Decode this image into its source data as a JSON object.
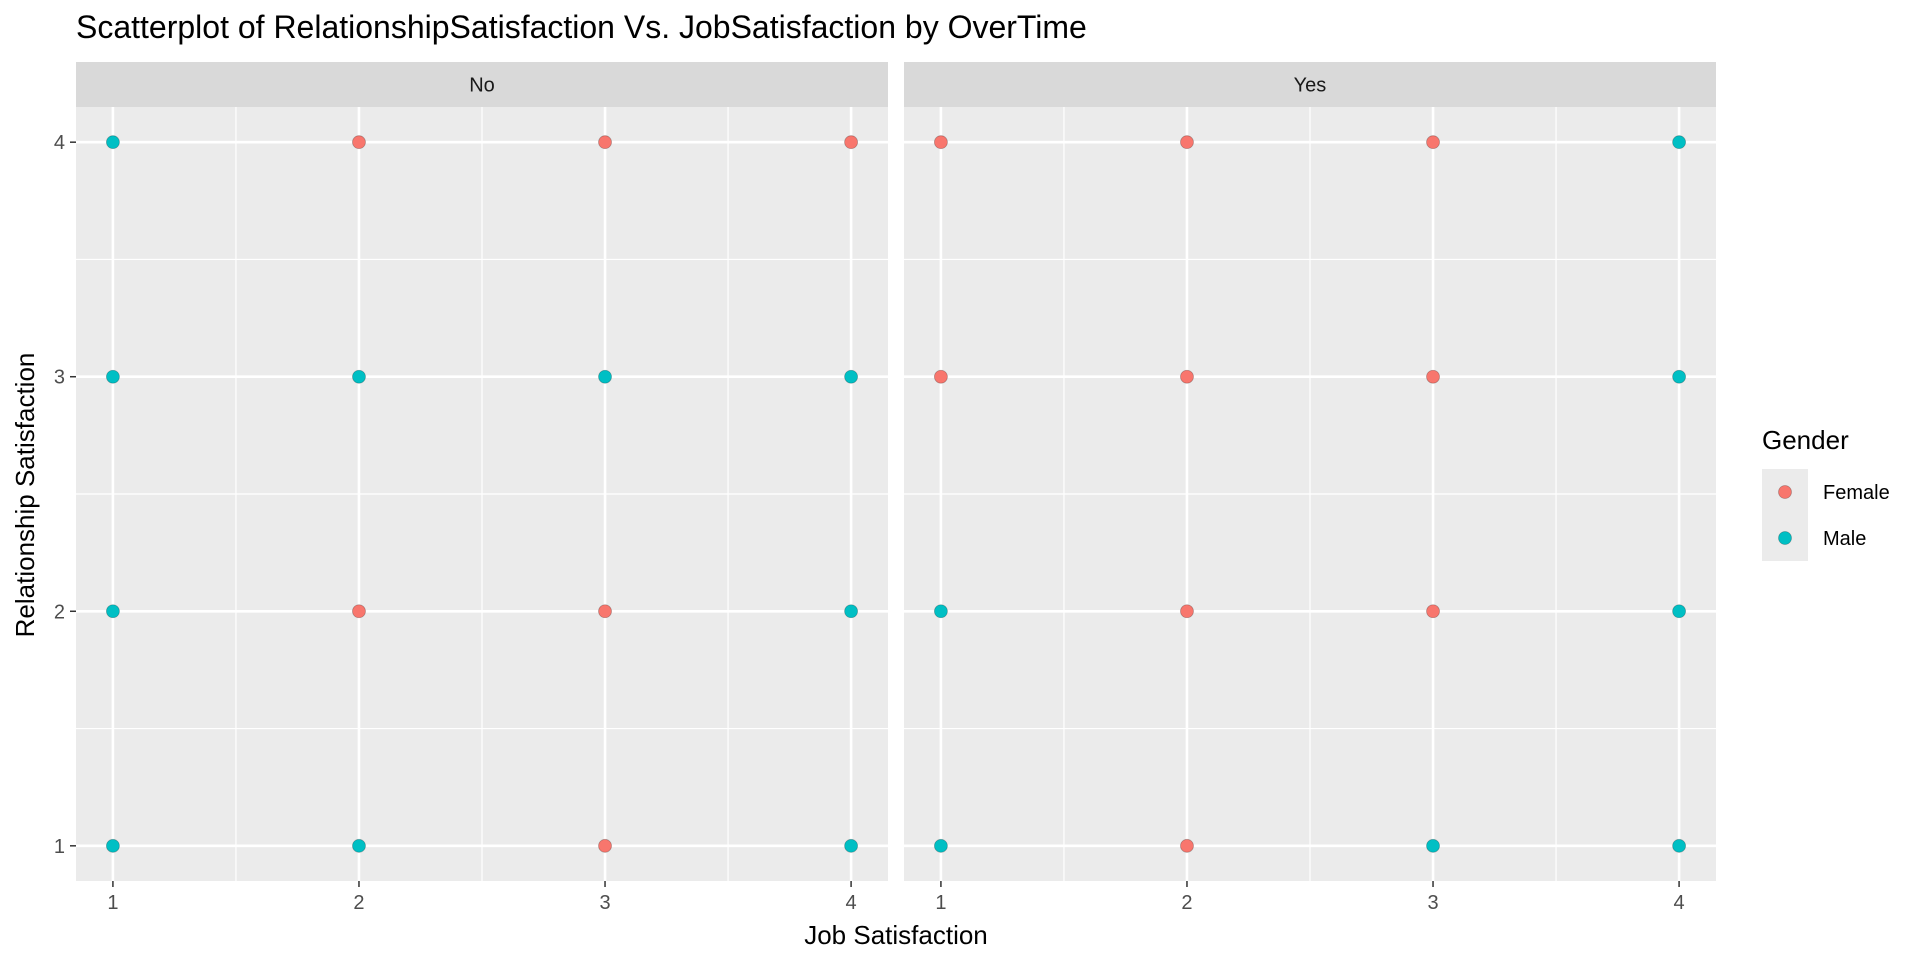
{
  "chart_data": {
    "type": "scatter",
    "title": "Scatterplot of RelationshipSatisfaction Vs. JobSatisfaction by OverTime",
    "xlabel": "Job Satisfaction",
    "ylabel": "Relationship Satisfaction",
    "xlim": [
      0.85,
      4.15
    ],
    "ylim": [
      0.85,
      4.15
    ],
    "x_ticks": [
      1,
      2,
      3,
      4
    ],
    "y_ticks": [
      1,
      2,
      3,
      4
    ],
    "grid": true,
    "facet_variable": "OverTime",
    "legend": {
      "title": "Gender",
      "position": "right",
      "entries": [
        {
          "name": "Female",
          "color": "#F8766D"
        },
        {
          "name": "Male",
          "color": "#00BFC4"
        }
      ]
    },
    "panels": [
      {
        "label": "No",
        "points": [
          {
            "x": 1,
            "y": 4,
            "gender": "Male"
          },
          {
            "x": 1,
            "y": 3,
            "gender": "Male"
          },
          {
            "x": 1,
            "y": 2,
            "gender": "Male"
          },
          {
            "x": 1,
            "y": 1,
            "gender": "Male"
          },
          {
            "x": 2,
            "y": 4,
            "gender": "Female"
          },
          {
            "x": 2,
            "y": 3,
            "gender": "Male"
          },
          {
            "x": 2,
            "y": 2,
            "gender": "Female"
          },
          {
            "x": 2,
            "y": 1,
            "gender": "Male"
          },
          {
            "x": 3,
            "y": 4,
            "gender": "Female"
          },
          {
            "x": 3,
            "y": 3,
            "gender": "Male"
          },
          {
            "x": 3,
            "y": 2,
            "gender": "Female"
          },
          {
            "x": 3,
            "y": 1,
            "gender": "Female"
          },
          {
            "x": 4,
            "y": 4,
            "gender": "Female"
          },
          {
            "x": 4,
            "y": 3,
            "gender": "Male"
          },
          {
            "x": 4,
            "y": 2,
            "gender": "Male"
          },
          {
            "x": 4,
            "y": 1,
            "gender": "Male"
          }
        ]
      },
      {
        "label": "Yes",
        "points": [
          {
            "x": 1,
            "y": 4,
            "gender": "Female"
          },
          {
            "x": 1,
            "y": 3,
            "gender": "Female"
          },
          {
            "x": 1,
            "y": 2,
            "gender": "Male"
          },
          {
            "x": 1,
            "y": 1,
            "gender": "Male"
          },
          {
            "x": 2,
            "y": 4,
            "gender": "Female"
          },
          {
            "x": 2,
            "y": 3,
            "gender": "Female"
          },
          {
            "x": 2,
            "y": 2,
            "gender": "Female"
          },
          {
            "x": 2,
            "y": 1,
            "gender": "Female"
          },
          {
            "x": 3,
            "y": 4,
            "gender": "Female"
          },
          {
            "x": 3,
            "y": 3,
            "gender": "Female"
          },
          {
            "x": 3,
            "y": 2,
            "gender": "Female"
          },
          {
            "x": 3,
            "y": 1,
            "gender": "Male"
          },
          {
            "x": 4,
            "y": 4,
            "gender": "Male"
          },
          {
            "x": 4,
            "y": 3,
            "gender": "Male"
          },
          {
            "x": 4,
            "y": 2,
            "gender": "Male"
          },
          {
            "x": 4,
            "y": 1,
            "gender": "Male"
          }
        ]
      }
    ]
  }
}
